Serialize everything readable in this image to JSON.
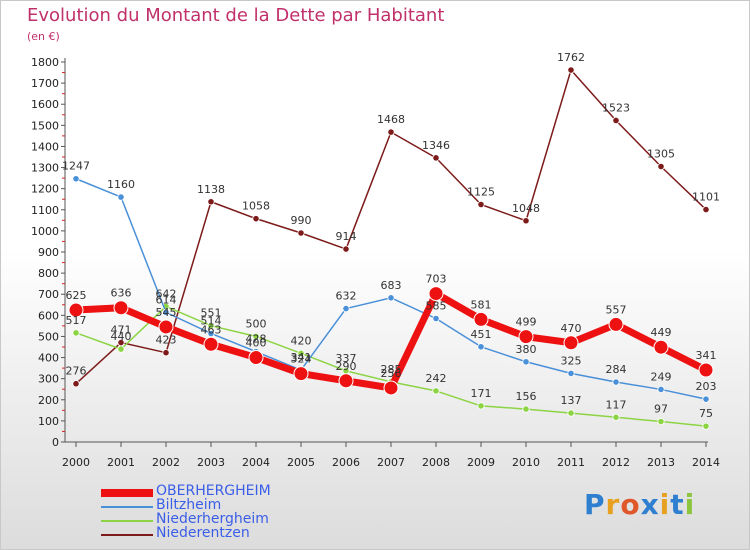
{
  "header": {
    "title": "Evolution du Montant de la Dette par Habitant",
    "unit": "(en €)"
  },
  "logo": {
    "letters": [
      "P",
      "r",
      "o",
      "x",
      "i",
      "t",
      "i"
    ],
    "colors": [
      "#2f7fd0",
      "#e8a020",
      "#e0582a",
      "#2f7fd0",
      "#e8a020",
      "#2f7fd0",
      "#8cc63f"
    ]
  },
  "chart_data": {
    "type": "line",
    "title": "Evolution du Montant de la Dette par Habitant",
    "ylabel": "(en €)",
    "xlabel": "",
    "x": [
      "2000",
      "2001",
      "2002",
      "2003",
      "2004",
      "2005",
      "2006",
      "2007",
      "2008",
      "2009",
      "2010",
      "2011",
      "2012",
      "2013",
      "2014"
    ],
    "ylim": [
      0,
      1800
    ],
    "yticks": [
      0,
      100,
      200,
      300,
      400,
      500,
      600,
      700,
      800,
      900,
      1000,
      1100,
      1200,
      1300,
      1400,
      1500,
      1600,
      1700,
      1800
    ],
    "grid": false,
    "legend_position": "bottom-left",
    "series": [
      {
        "name": "Niederentzen",
        "color": "#7d1a1a",
        "values": [
          276,
          471,
          423,
          1138,
          1058,
          990,
          914,
          1468,
          1346,
          1125,
          1048,
          1762,
          1523,
          1305,
          1101
        ],
        "labels": [
          "276",
          "471",
          "423",
          "1138",
          "1058",
          "990",
          "914",
          "1468",
          "1346",
          "1125",
          "1048",
          "1762",
          "1523",
          "1305",
          "1101"
        ]
      },
      {
        "name": "Niederhergheim",
        "color": "#8cd444",
        "values": [
          517,
          440,
          642,
          551,
          500,
          420,
          337,
          285,
          242,
          171,
          156,
          137,
          117,
          97,
          75
        ],
        "labels": [
          "517",
          "440",
          "642",
          "551",
          "500",
          "420",
          "337",
          "285",
          "242",
          "171",
          "156",
          "137",
          "117",
          "97",
          "75"
        ]
      },
      {
        "name": "Biltzheim",
        "color": "#4a90d8",
        "values": [
          1247,
          1160,
          614,
          514,
          428,
          341,
          632,
          683,
          585,
          451,
          380,
          325,
          284,
          249,
          203
        ],
        "labels": [
          "1247",
          "1160",
          "614",
          "514",
          "428",
          "341",
          "632",
          "683",
          "585",
          "451",
          "380",
          "325",
          "284",
          "249",
          "203"
        ]
      },
      {
        "name": "OBERHERGHEIM",
        "color": "#ee1111",
        "values": [
          625,
          636,
          545,
          463,
          400,
          324,
          290,
          256,
          703,
          581,
          499,
          470,
          557,
          449,
          341
        ],
        "labels": [
          "625",
          "636",
          "545",
          "463",
          "400",
          "324",
          "290",
          "256",
          "703",
          "581",
          "499",
          "470",
          "557",
          "449",
          "341"
        ]
      }
    ]
  },
  "legend": {
    "items": [
      {
        "label": "OBERHERGHEIM",
        "color": "#ee1111",
        "thickness": "thick"
      },
      {
        "label": "Biltzheim",
        "color": "#4a90d8",
        "thickness": "thin"
      },
      {
        "label": "Niederhergheim",
        "color": "#8cd444",
        "thickness": "thin"
      },
      {
        "label": "Niederentzen",
        "color": "#7d1a1a",
        "thickness": "thin"
      }
    ]
  }
}
